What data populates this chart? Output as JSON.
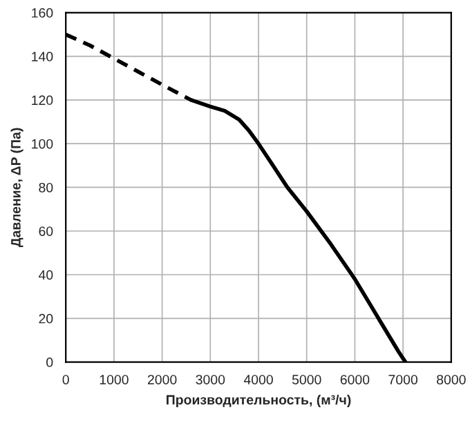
{
  "chart_data": {
    "type": "line",
    "xlabel": "Производительность, (м³/ч)",
    "ylabel": "Давление, ΔP (Па)",
    "series": [
      {
        "color": "#000000",
        "line_style": "dashed",
        "x": [
          0,
          500,
          1000,
          1500,
          2000,
          2600
        ],
        "values": [
          150,
          145,
          139,
          133,
          127,
          120
        ]
      },
      {
        "color": "#000000",
        "line_style": "solid",
        "x": [
          2600,
          3000,
          3300,
          3600,
          3800,
          4000,
          4300,
          4600,
          5000,
          5500,
          6000,
          6300,
          6600,
          6900,
          7050
        ],
        "values": [
          120,
          117,
          115,
          111,
          106,
          100,
          90,
          80,
          69,
          54,
          38,
          27,
          16,
          5,
          0
        ]
      }
    ],
    "xlim": [
      0,
      8000
    ],
    "xticks": [
      0,
      1000,
      2000,
      3000,
      4000,
      5000,
      6000,
      7000,
      8000
    ],
    "ylim": [
      0,
      160
    ],
    "yticks": [
      0,
      20,
      40,
      60,
      80,
      100,
      120,
      140,
      160
    ],
    "grid": true
  }
}
